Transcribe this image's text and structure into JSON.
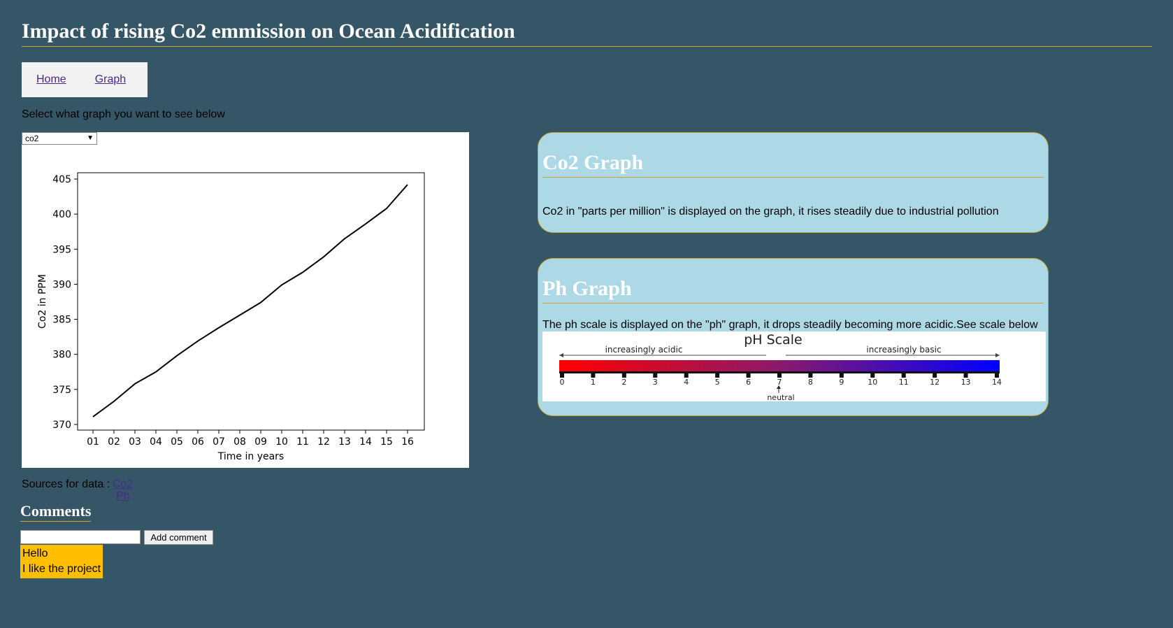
{
  "header": {
    "title": "Impact of rising Co2 emmission on Ocean Acidification"
  },
  "nav": {
    "items": [
      {
        "label": "Home"
      },
      {
        "label": "Graph"
      }
    ]
  },
  "graph_selector": {
    "label": "Select what graph you want to see below",
    "selected": "co2"
  },
  "chart_data": {
    "type": "line",
    "title": "",
    "xlabel": "Time in years",
    "ylabel": "Co2 in PPM",
    "categories": [
      "01",
      "02",
      "03",
      "04",
      "05",
      "06",
      "07",
      "08",
      "09",
      "10",
      "11",
      "12",
      "13",
      "14",
      "15",
      "16"
    ],
    "values": [
      371.1,
      373.3,
      375.8,
      377.5,
      379.8,
      381.9,
      383.8,
      385.6,
      387.4,
      389.9,
      391.7,
      393.9,
      396.5,
      398.6,
      400.8,
      404.2
    ],
    "ylim": [
      369.2,
      405.9
    ],
    "yticks": [
      370,
      375,
      380,
      385,
      390,
      395,
      400,
      405
    ],
    "grid": false,
    "line_color": "#000000"
  },
  "panels": {
    "co2": {
      "title": "Co2 Graph",
      "text": "Co2 in \"parts per million\" is displayed on the graph, it rises steadily due to industrial pollution"
    },
    "ph": {
      "title": "Ph Graph",
      "text": "The ph scale is displayed on the \"ph\" graph, it drops steadily becoming more acidic.See scale below",
      "scale": {
        "title": "pH Scale",
        "left_label": "increasingly acidic",
        "right_label": "increasingly basic",
        "neutral_label": "neutral",
        "ticks": [
          "0",
          "1",
          "2",
          "3",
          "4",
          "5",
          "6",
          "7",
          "8",
          "9",
          "10",
          "11",
          "12",
          "13",
          "14"
        ],
        "gradient_colors": [
          "#ff0000",
          "#8b1a6b",
          "#0000ff"
        ]
      }
    }
  },
  "sources": {
    "label": "Sources for data :",
    "links": [
      {
        "label": "Co2"
      },
      {
        "label": "Ph"
      }
    ]
  },
  "comments": {
    "title": "Comments",
    "input_value": "",
    "button_label": "Add comment",
    "items": [
      "Hello",
      "I like the project"
    ]
  },
  "colors": {
    "background": "#355666",
    "accent": "#d4a32a",
    "panel": "#add8e6",
    "comment_bg": "#ffbf00"
  }
}
